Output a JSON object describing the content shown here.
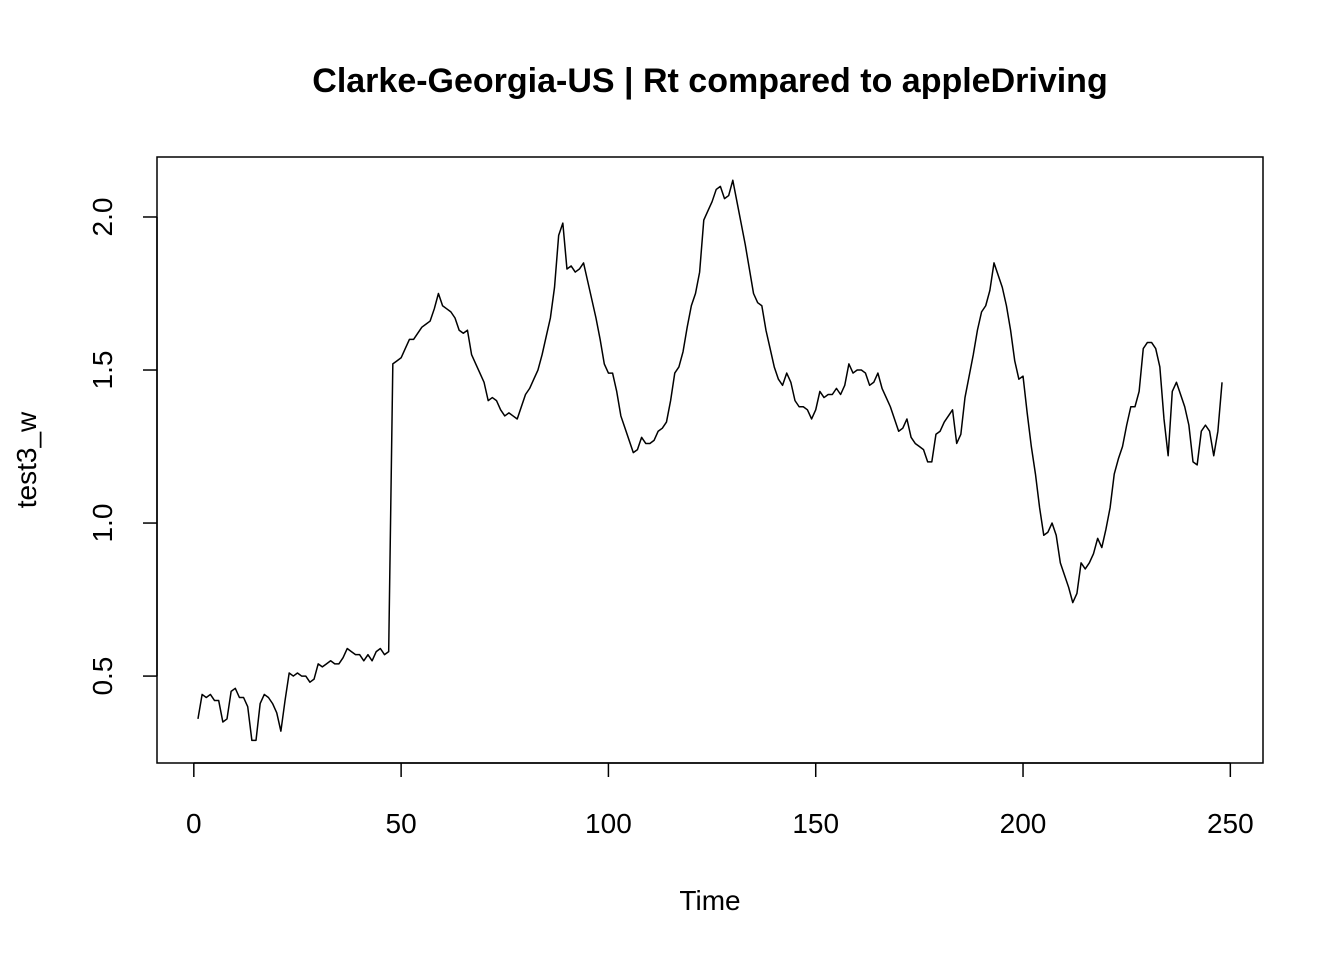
{
  "chart_data": {
    "type": "line",
    "title": "Clarke-Georgia-US | Rt compared to appleDriving",
    "x_label": "Time",
    "y_label": "test3_w",
    "color": "#000000",
    "xlim": [
      -8.88,
      257.88
    ],
    "ylim": [
      0.216,
      2.196
    ],
    "xticks": [
      0,
      50,
      100,
      150,
      200,
      250
    ],
    "yticks": [
      0.5,
      {
        "value": 1.0,
        "label": "1.0"
      },
      1.5,
      {
        "value": 2.0,
        "label": "2.0"
      }
    ],
    "x": [
      1,
      2,
      3,
      4,
      5,
      6,
      7,
      8,
      9,
      10,
      11,
      12,
      13,
      14,
      15,
      16,
      17,
      18,
      19,
      20,
      21,
      22,
      23,
      24,
      25,
      26,
      27,
      28,
      29,
      30,
      31,
      32,
      33,
      34,
      35,
      36,
      37,
      38,
      39,
      40,
      41,
      42,
      43,
      44,
      45,
      46,
      47,
      48,
      49,
      50,
      51,
      52,
      53,
      54,
      55,
      56,
      57,
      58,
      59,
      60,
      61,
      62,
      63,
      64,
      65,
      66,
      67,
      68,
      69,
      70,
      71,
      72,
      73,
      74,
      75,
      76,
      77,
      78,
      79,
      80,
      81,
      82,
      83,
      84,
      85,
      86,
      87,
      88,
      89,
      90,
      91,
      92,
      93,
      94,
      95,
      96,
      97,
      98,
      99,
      100,
      101,
      102,
      103,
      104,
      105,
      106,
      107,
      108,
      109,
      110,
      111,
      112,
      113,
      114,
      115,
      116,
      117,
      118,
      119,
      120,
      121,
      122,
      123,
      124,
      125,
      126,
      127,
      128,
      129,
      130,
      131,
      132,
      133,
      134,
      135,
      136,
      137,
      138,
      139,
      140,
      141,
      142,
      143,
      144,
      145,
      146,
      147,
      148,
      149,
      150,
      151,
      152,
      153,
      154,
      155,
      156,
      157,
      158,
      159,
      160,
      161,
      162,
      163,
      164,
      165,
      166,
      167,
      168,
      169,
      170,
      171,
      172,
      173,
      174,
      175,
      176,
      177,
      178,
      179,
      180,
      181,
      182,
      183,
      184,
      185,
      186,
      187,
      188,
      189,
      190,
      191,
      192,
      193,
      194,
      195,
      196,
      197,
      198,
      199,
      200,
      201,
      202,
      203,
      204,
      205,
      206,
      207,
      208,
      209,
      210,
      211,
      212,
      213,
      214,
      215,
      216,
      217,
      218,
      219,
      220,
      221,
      222,
      223,
      224,
      225,
      226,
      227,
      228,
      229,
      230,
      231,
      232,
      233,
      234,
      235,
      236,
      237,
      238,
      239,
      240,
      241,
      242,
      243,
      244,
      245,
      246,
      247,
      248
    ],
    "values": [
      0.36,
      0.44,
      0.43,
      0.44,
      0.42,
      0.42,
      0.35,
      0.36,
      0.45,
      0.46,
      0.43,
      0.43,
      0.4,
      0.29,
      0.29,
      0.41,
      0.44,
      0.43,
      0.41,
      0.38,
      0.32,
      0.42,
      0.51,
      0.5,
      0.51,
      0.5,
      0.5,
      0.48,
      0.49,
      0.54,
      0.53,
      0.54,
      0.55,
      0.54,
      0.54,
      0.56,
      0.59,
      0.58,
      0.57,
      0.57,
      0.55,
      0.57,
      0.55,
      0.58,
      0.59,
      0.57,
      0.58,
      1.52,
      1.53,
      1.54,
      1.57,
      1.6,
      1.6,
      1.62,
      1.64,
      1.65,
      1.66,
      1.7,
      1.75,
      1.71,
      1.7,
      1.69,
      1.67,
      1.63,
      1.62,
      1.63,
      1.55,
      1.52,
      1.49,
      1.46,
      1.4,
      1.41,
      1.4,
      1.37,
      1.35,
      1.36,
      1.35,
      1.34,
      1.38,
      1.42,
      1.44,
      1.47,
      1.5,
      1.55,
      1.61,
      1.67,
      1.77,
      1.94,
      1.98,
      1.83,
      1.84,
      1.82,
      1.83,
      1.85,
      1.79,
      1.73,
      1.67,
      1.6,
      1.52,
      1.49,
      1.49,
      1.43,
      1.35,
      1.31,
      1.27,
      1.23,
      1.24,
      1.28,
      1.26,
      1.26,
      1.27,
      1.3,
      1.31,
      1.33,
      1.4,
      1.49,
      1.51,
      1.56,
      1.64,
      1.71,
      1.75,
      1.82,
      1.99,
      2.02,
      2.05,
      2.09,
      2.1,
      2.06,
      2.07,
      2.12,
      2.05,
      1.98,
      1.91,
      1.83,
      1.75,
      1.72,
      1.71,
      1.63,
      1.57,
      1.51,
      1.47,
      1.45,
      1.49,
      1.46,
      1.4,
      1.38,
      1.38,
      1.37,
      1.34,
      1.37,
      1.43,
      1.41,
      1.42,
      1.42,
      1.44,
      1.42,
      1.45,
      1.52,
      1.49,
      1.5,
      1.5,
      1.49,
      1.45,
      1.46,
      1.49,
      1.44,
      1.41,
      1.38,
      1.34,
      1.3,
      1.31,
      1.34,
      1.28,
      1.26,
      1.25,
      1.24,
      1.2,
      1.2,
      1.29,
      1.3,
      1.33,
      1.35,
      1.37,
      1.26,
      1.29,
      1.41,
      1.48,
      1.55,
      1.63,
      1.69,
      1.71,
      1.76,
      1.85,
      1.81,
      1.77,
      1.71,
      1.63,
      1.53,
      1.47,
      1.48,
      1.36,
      1.25,
      1.16,
      1.05,
      0.96,
      0.97,
      1.0,
      0.96,
      0.87,
      0.83,
      0.79,
      0.74,
      0.77,
      0.87,
      0.85,
      0.87,
      0.9,
      0.95,
      0.92,
      0.98,
      1.05,
      1.16,
      1.21,
      1.25,
      1.32,
      1.38,
      1.38,
      1.43,
      1.57,
      1.59,
      1.59,
      1.57,
      1.51,
      1.34,
      1.22,
      1.43,
      1.46,
      1.42,
      1.38,
      1.32,
      1.2,
      1.19,
      1.3,
      1.32,
      1.3,
      1.22,
      1.3,
      1.46
    ]
  }
}
